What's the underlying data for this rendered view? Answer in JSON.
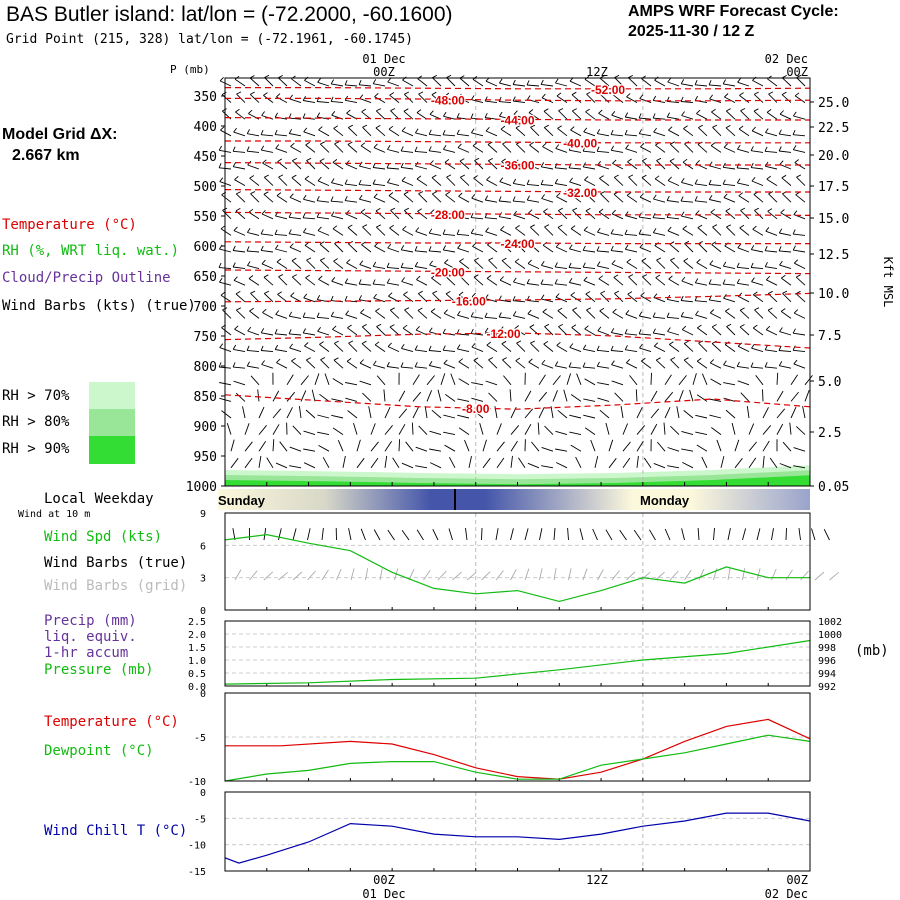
{
  "header": {
    "title": "BAS Butler island:  lat/lon = (-72.2000, -60.1600)",
    "grid_point": "Grid Point (215, 328) lat/lon = (-72.1961, -60.1745)",
    "cycle_label": "AMPS WRF Forecast Cycle:",
    "cycle_value": "2025-11-30 / 12  Z"
  },
  "model_grid": {
    "label": "Model Grid ΔX:",
    "value": "2.667 km"
  },
  "legend": {
    "temperature": "Temperature (°C)",
    "rh": "RH (%, WRT liq. wat.)",
    "cloud": "Cloud/Precip Outline",
    "wind": "Wind Barbs (kts) (true)",
    "rh_levels": [
      {
        "label": "RH > 70%",
        "color": "#ccf7cc"
      },
      {
        "label": "RH > 80%",
        "color": "#99e699"
      },
      {
        "label": "RH > 90%",
        "color": "#33dd33"
      }
    ]
  },
  "colors": {
    "temperature": "#dd0000",
    "rh": "#11bb11",
    "cloud": "#663399",
    "wind_grid": "#aaaaaa",
    "wind_chill": "#0000aa",
    "weekday_dark": "#4455aa",
    "weekday_light": "#fcf8dc"
  },
  "time_axis": {
    "top_day_labels": [
      "01 Dec",
      "",
      "02 Dec"
    ],
    "top_hour_labels": [
      "00Z",
      "12Z",
      "00Z"
    ],
    "bottom_hour_labels": [
      "00Z",
      "12Z",
      "00Z"
    ],
    "bottom_day_labels": [
      "01 Dec",
      "",
      "02 Dec"
    ]
  },
  "panels": {
    "weekday": {
      "label": "Local Weekday",
      "days": [
        "Sunday",
        "Monday"
      ]
    },
    "wind10": {
      "label": "Wind at 10 m",
      "spd_label": "Wind Spd (kts)",
      "barb_true_label": "Wind Barbs (true)",
      "barb_grid_label": "Wind Barbs (grid)"
    },
    "precip": {
      "label": "Precip (mm)",
      "label2": "liq. equiv.",
      "label3": "1-hr accum",
      "pressure_label": "Pressure (mb)",
      "pressure_unit": "(mb)"
    },
    "temp": {
      "t_label": "Temperature (°C)",
      "td_label": "Dewpoint (°C)"
    },
    "chill": {
      "label": "Wind Chill T (°C)"
    }
  },
  "chart_data": [
    {
      "type": "line",
      "title": "",
      "xlabel": "",
      "ylabel": "P (mb)",
      "y2label": "Kft MSL",
      "ylim": [
        1000,
        320
      ],
      "y_ticks": [
        350,
        400,
        450,
        500,
        550,
        600,
        650,
        700,
        750,
        800,
        850,
        900,
        950,
        1000
      ],
      "y2_ticks": [
        "25.0",
        "22.5",
        "20.0",
        "17.5",
        "15.0",
        "12.5",
        "10.0",
        "7.5",
        "5.0",
        "2.5",
        "0.05"
      ],
      "x_hours_range": [
        -18,
        24
      ],
      "isotherm_labels": [
        "-52.00",
        "-48.00",
        "-44.00",
        "-40.00",
        "-36.00",
        "-32.00",
        "-28.00",
        "-24.00",
        "-20.00",
        "-16.00",
        "-12.00",
        "-8.00"
      ],
      "isotherms": [
        {
          "temp": -52,
          "p": [
            336,
            336,
            337,
            338,
            338,
            338,
            337
          ]
        },
        {
          "temp": -48,
          "p": [
            354,
            354,
            355,
            357,
            358,
            358,
            357
          ]
        },
        {
          "temp": -44,
          "p": [
            386,
            387,
            388,
            389,
            390,
            390,
            390
          ]
        },
        {
          "temp": -40,
          "p": [
            425,
            425,
            426,
            427,
            428,
            428,
            428
          ]
        },
        {
          "temp": -36,
          "p": [
            461,
            462,
            463,
            464,
            465,
            465,
            465
          ]
        },
        {
          "temp": -32,
          "p": [
            506,
            507,
            508,
            509,
            510,
            510,
            510
          ]
        },
        {
          "temp": -28,
          "p": [
            544,
            545,
            546,
            547,
            548,
            548,
            549
          ]
        },
        {
          "temp": -24,
          "p": [
            593,
            594,
            595,
            595,
            596,
            596,
            596
          ]
        },
        {
          "temp": -20,
          "p": [
            640,
            641,
            642,
            643,
            644,
            645,
            646
          ]
        },
        {
          "temp": -16,
          "p": [
            693,
            692,
            691,
            690,
            688,
            684,
            679
          ]
        },
        {
          "temp": -12,
          "p": [
            756,
            752,
            747,
            745,
            750,
            760,
            770
          ]
        },
        {
          "temp": -8,
          "p": [
            848,
            858,
            868,
            872,
            865,
            855,
            868
          ]
        }
      ],
      "rh_surface_layer_p": [
        980,
        982,
        985,
        987,
        985,
        980,
        972
      ]
    },
    {
      "type": "line",
      "title": "",
      "series": [
        {
          "name": "Wind Spd (kts)",
          "x_hours": [
            -18,
            -15,
            -12,
            -9,
            -6,
            -3,
            0,
            3,
            6,
            9,
            12,
            15,
            18,
            21,
            24
          ],
          "values": [
            6.5,
            7,
            6.2,
            5.5,
            3.5,
            2,
            1.5,
            1.8,
            0.8,
            1.8,
            3,
            2.5,
            4,
            3,
            3
          ]
        }
      ],
      "ylim": [
        0,
        9
      ],
      "y_ticks": [
        0,
        3,
        6,
        9
      ]
    },
    {
      "type": "line",
      "title": "",
      "series": [
        {
          "name": "Precip (mm)",
          "x_hours": [
            -18,
            24
          ],
          "values": [
            0,
            0
          ]
        },
        {
          "name": "Pressure (mb)",
          "x_hours": [
            -18,
            -12,
            -6,
            0,
            6,
            12,
            18,
            24
          ],
          "values": [
            992.3,
            992.5,
            993,
            993.2,
            994.5,
            996,
            997,
            999
          ]
        }
      ],
      "ylim": [
        0,
        2.5
      ],
      "y_ticks": [
        "0.0",
        "0.5",
        "1.0",
        "1.5",
        "2.0",
        "2.5"
      ],
      "y2_ticks": [
        "992",
        "994",
        "996",
        "998",
        "1000",
        "1002"
      ]
    },
    {
      "type": "line",
      "title": "",
      "series": [
        {
          "name": "Temperature (°C)",
          "x_hours": [
            -18,
            -14,
            -9,
            -6,
            -3,
            0,
            3,
            6,
            9,
            12,
            15,
            18,
            21,
            24
          ],
          "values": [
            -6,
            -6,
            -5.5,
            -5.8,
            -7,
            -8.5,
            -9.5,
            -9.8,
            -9,
            -7.5,
            -5.5,
            -3.8,
            -3,
            -5.2
          ]
        },
        {
          "name": "Dewpoint (°C)",
          "x_hours": [
            -18,
            -15,
            -12,
            -9,
            -6,
            -3,
            0,
            3,
            6,
            9,
            12,
            15,
            18,
            21,
            24
          ],
          "values": [
            -10,
            -9.2,
            -8.8,
            -8,
            -7.8,
            -7.8,
            -9,
            -9.8,
            -9.8,
            -8.2,
            -7.5,
            -6.8,
            -5.8,
            -4.8,
            -5.5
          ]
        }
      ],
      "ylim": [
        -10,
        0
      ],
      "y_ticks": [
        "-10",
        "-5",
        "0"
      ]
    },
    {
      "type": "line",
      "title": "",
      "series": [
        {
          "name": "Wind Chill T (°C)",
          "x_hours": [
            -18,
            -17,
            -15,
            -12,
            -9,
            -6,
            -3,
            0,
            3,
            6,
            9,
            12,
            15,
            18,
            21,
            24
          ],
          "values": [
            -12.5,
            -13.5,
            -12,
            -9.5,
            -6,
            -6.5,
            -8,
            -8.5,
            -8.5,
            -9,
            -8,
            -6.5,
            -5.5,
            -4,
            -4,
            -5.5
          ]
        }
      ],
      "ylim": [
        -15,
        0
      ],
      "y_ticks": [
        "-15",
        "-10",
        "-5",
        "0"
      ]
    }
  ]
}
